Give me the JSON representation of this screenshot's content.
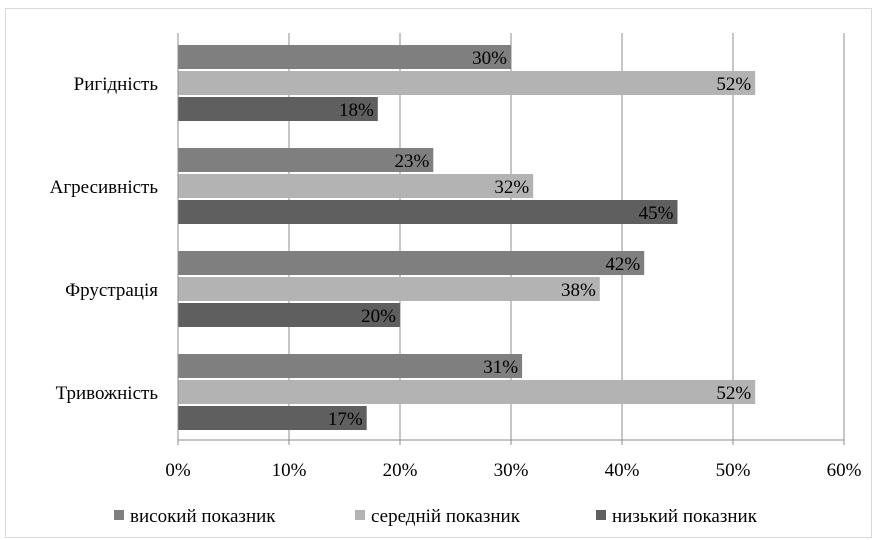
{
  "chart_data": {
    "type": "bar",
    "orientation": "horizontal",
    "categories": [
      "Ригідність",
      "Агресивність",
      "Фрустрація",
      "Тривожність"
    ],
    "series": [
      {
        "name": "високий показник",
        "values": [
          30,
          23,
          42,
          31
        ],
        "labels": [
          "30%",
          "23%",
          "42%",
          "31%"
        ],
        "color": "#7f7f7f"
      },
      {
        "name": "середній показник",
        "values": [
          52,
          32,
          38,
          52
        ],
        "labels": [
          "52%",
          "32%",
          "38%",
          "52%"
        ],
        "color": "#b3b3b3"
      },
      {
        "name": "низький показник",
        "values": [
          18,
          45,
          20,
          17
        ],
        "labels": [
          "18%",
          "45%",
          "20%",
          "17%"
        ],
        "color": "#5f5f5f"
      }
    ],
    "xlim": [
      0,
      60
    ],
    "xticks": [
      0,
      10,
      20,
      30,
      40,
      50,
      60
    ],
    "xtick_labels": [
      "0%",
      "10%",
      "20%",
      "30%",
      "40%",
      "50%",
      "60%"
    ],
    "grid": "vertical",
    "legend_position": "bottom"
  }
}
